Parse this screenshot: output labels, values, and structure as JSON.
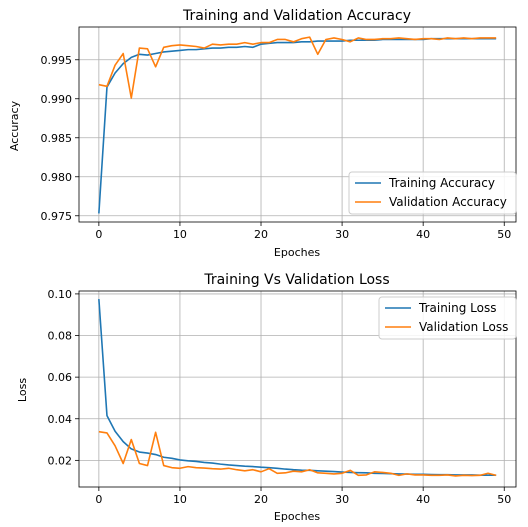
{
  "chart_data": [
    {
      "type": "line",
      "title": "Training and Validation Accuracy",
      "xlabel": "Epoches",
      "ylabel": "Accuracy",
      "xlim": [
        -2.45,
        51.45
      ],
      "ylim": [
        0.9742,
        0.9992
      ],
      "xticks": [
        0,
        10,
        20,
        30,
        40,
        50
      ],
      "yticks": [
        0.975,
        0.98,
        0.985,
        0.99,
        0.995
      ],
      "ytick_labels": [
        "0.975",
        "0.980",
        "0.985",
        "0.990",
        "0.995"
      ],
      "grid": true,
      "legend_position": "bottom-right",
      "x": [
        0,
        1,
        2,
        3,
        4,
        5,
        6,
        7,
        8,
        9,
        10,
        11,
        12,
        13,
        14,
        15,
        16,
        17,
        18,
        19,
        20,
        21,
        22,
        23,
        24,
        25,
        26,
        27,
        28,
        29,
        30,
        31,
        32,
        33,
        34,
        35,
        36,
        37,
        38,
        39,
        40,
        41,
        42,
        43,
        44,
        45,
        46,
        47,
        48,
        49
      ],
      "series": [
        {
          "name": "Training Accuracy",
          "color": "#1f77b4",
          "values": [
            0.9753,
            0.9915,
            0.9933,
            0.9945,
            0.9953,
            0.9957,
            0.9956,
            0.9958,
            0.996,
            0.9961,
            0.9962,
            0.9963,
            0.9963,
            0.9964,
            0.9965,
            0.9965,
            0.9966,
            0.9966,
            0.9967,
            0.9966,
            0.997,
            0.9971,
            0.9972,
            0.9972,
            0.9972,
            0.9973,
            0.9973,
            0.9974,
            0.9974,
            0.9974,
            0.9974,
            0.9975,
            0.9975,
            0.9975,
            0.9975,
            0.9976,
            0.9976,
            0.9976,
            0.9976,
            0.9976,
            0.9976,
            0.9977,
            0.9977,
            0.9977,
            0.9977,
            0.9977,
            0.9977,
            0.9977,
            0.9977,
            0.9977
          ]
        },
        {
          "name": "Validation Accuracy",
          "color": "#ff7f0e",
          "values": [
            0.9918,
            0.9916,
            0.9943,
            0.9958,
            0.9901,
            0.9965,
            0.9964,
            0.9941,
            0.9966,
            0.9968,
            0.9969,
            0.9968,
            0.9967,
            0.9965,
            0.997,
            0.9969,
            0.997,
            0.997,
            0.9972,
            0.997,
            0.9972,
            0.9972,
            0.9976,
            0.9976,
            0.9973,
            0.9977,
            0.9979,
            0.9957,
            0.9976,
            0.9978,
            0.9976,
            0.9973,
            0.9978,
            0.9976,
            0.9976,
            0.9977,
            0.9977,
            0.9978,
            0.9977,
            0.9976,
            0.9977,
            0.9977,
            0.9976,
            0.9978,
            0.9977,
            0.9978,
            0.9977,
            0.9978,
            0.9978,
            0.9978
          ]
        }
      ]
    },
    {
      "type": "line",
      "title": "Training Vs Validation Loss",
      "xlabel": "Epoches",
      "ylabel": "Loss",
      "xlim": [
        -2.45,
        51.45
      ],
      "ylim": [
        0.0072,
        0.1014
      ],
      "xticks": [
        0,
        10,
        20,
        30,
        40,
        50
      ],
      "yticks": [
        0.02,
        0.04,
        0.06,
        0.08,
        0.1
      ],
      "ytick_labels": [
        "0.02",
        "0.04",
        "0.06",
        "0.08",
        "0.10"
      ],
      "grid": true,
      "legend_position": "top-right",
      "x": [
        0,
        1,
        2,
        3,
        4,
        5,
        6,
        7,
        8,
        9,
        10,
        11,
        12,
        13,
        14,
        15,
        16,
        17,
        18,
        19,
        20,
        21,
        22,
        23,
        24,
        25,
        26,
        27,
        28,
        29,
        30,
        31,
        32,
        33,
        34,
        35,
        36,
        37,
        38,
        39,
        40,
        41,
        42,
        43,
        44,
        45,
        46,
        47,
        48,
        49
      ],
      "series": [
        {
          "name": "Training Loss",
          "color": "#1f77b4",
          "values": [
            0.0975,
            0.0415,
            0.034,
            0.029,
            0.0255,
            0.024,
            0.0235,
            0.0228,
            0.0215,
            0.021,
            0.0202,
            0.0198,
            0.0195,
            0.019,
            0.0187,
            0.0182,
            0.0178,
            0.0175,
            0.0172,
            0.017,
            0.0167,
            0.0165,
            0.0162,
            0.0158,
            0.0155,
            0.0153,
            0.0152,
            0.015,
            0.0148,
            0.0146,
            0.0144,
            0.0142,
            0.0141,
            0.014,
            0.0138,
            0.0137,
            0.0136,
            0.0135,
            0.0134,
            0.0133,
            0.0133,
            0.0132,
            0.0131,
            0.0131,
            0.013,
            0.013,
            0.013,
            0.0129,
            0.0129,
            0.0129
          ]
        },
        {
          "name": "Validation Loss",
          "color": "#ff7f0e",
          "values": [
            0.0338,
            0.0332,
            0.027,
            0.0185,
            0.03,
            0.0185,
            0.0175,
            0.0335,
            0.0175,
            0.0165,
            0.0162,
            0.017,
            0.0165,
            0.0163,
            0.016,
            0.0158,
            0.0162,
            0.0155,
            0.015,
            0.0155,
            0.0145,
            0.016,
            0.0138,
            0.014,
            0.0148,
            0.0145,
            0.0155,
            0.014,
            0.0138,
            0.0135,
            0.0138,
            0.0152,
            0.0128,
            0.013,
            0.0145,
            0.0142,
            0.0138,
            0.0128,
            0.0135,
            0.013,
            0.013,
            0.0128,
            0.0128,
            0.013,
            0.0125,
            0.0128,
            0.0127,
            0.0128,
            0.0138,
            0.0128
          ]
        }
      ]
    }
  ]
}
